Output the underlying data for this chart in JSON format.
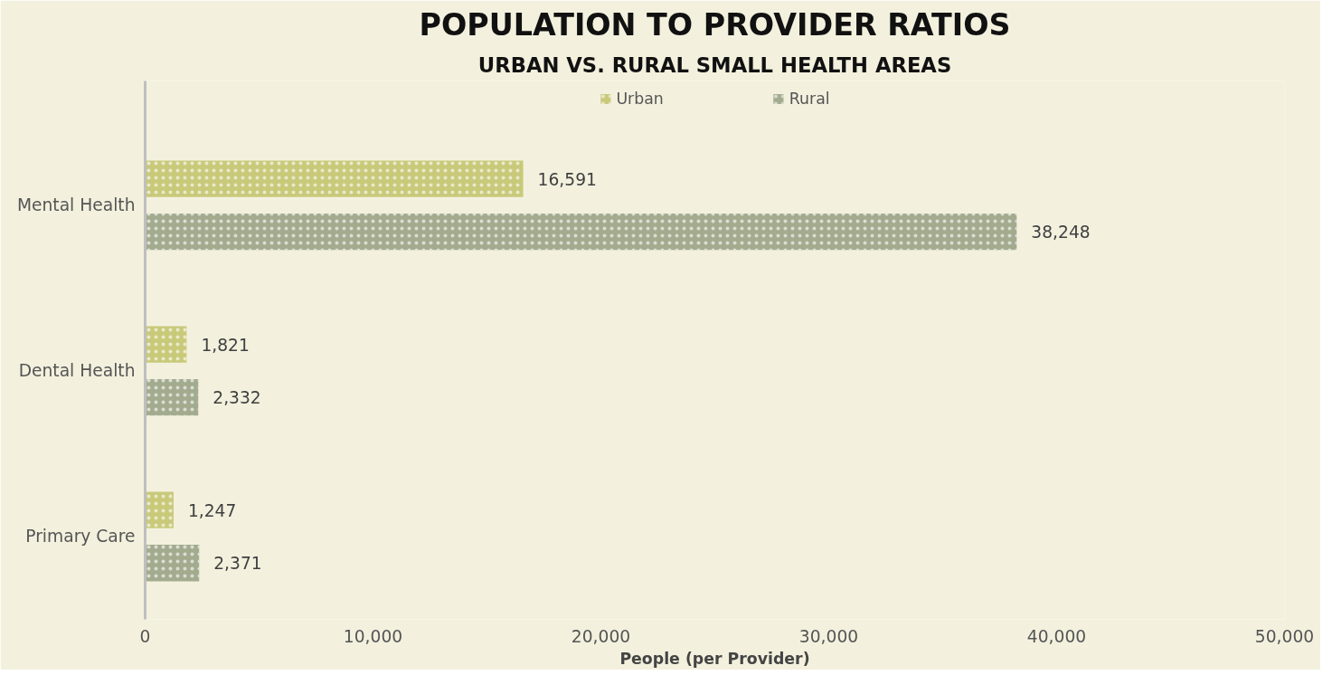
{
  "chart_data": {
    "type": "bar",
    "orientation": "horizontal",
    "title": "POPULATION TO PROVIDER RATIOS",
    "subtitle": "URBAN VS. RURAL SMALL HEALTH AREAS",
    "xlabel": "People (per Provider)",
    "categories": [
      "Mental Health",
      "Dental Health",
      "Primary Care"
    ],
    "series": [
      {
        "name": "Urban",
        "color": "#c9c97a",
        "values": [
          16591,
          1821,
          1247
        ],
        "value_labels": [
          "16,591",
          "1,821",
          "1,247"
        ]
      },
      {
        "name": "Rural",
        "color": "#a3ab8e",
        "values": [
          38248,
          2332,
          2371
        ],
        "value_labels": [
          "38,248",
          "2,332",
          "2,371"
        ]
      }
    ],
    "xlim": [
      0,
      50000
    ],
    "xticks": [
      {
        "value": 0,
        "label": "0"
      },
      {
        "value": 10000,
        "label": "10,000"
      },
      {
        "value": 20000,
        "label": "20,000"
      },
      {
        "value": 30000,
        "label": "30,000"
      },
      {
        "value": 40000,
        "label": "40,000"
      },
      {
        "value": 50000,
        "label": "50,000"
      }
    ],
    "legend": "top",
    "grid": false
  }
}
